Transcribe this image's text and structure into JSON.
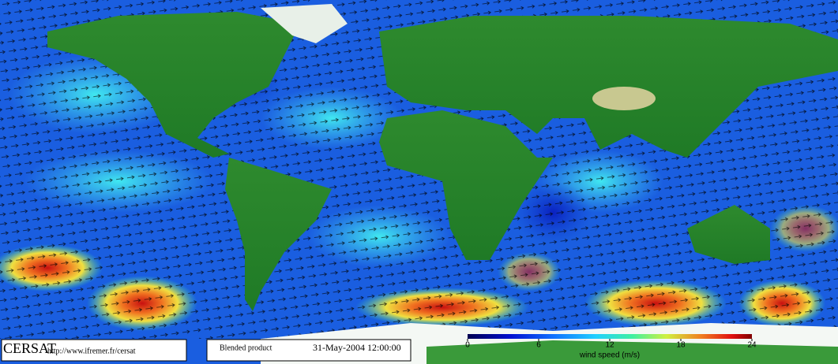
{
  "footer": {
    "logo": "CERSAT",
    "url": "http://www.ifremer.fr/cersat",
    "product": "Blended product",
    "date": "31-May-2004 12:00:00"
  },
  "colorbar": {
    "ticks": [
      0,
      6,
      12,
      18,
      24
    ],
    "label": "wind speed (m/s)"
  }
}
